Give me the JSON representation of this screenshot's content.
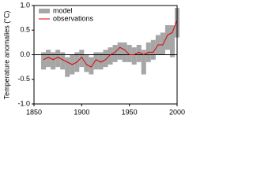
{
  "chart_data": {
    "type": "line",
    "ylabel": "Temperature anomalies (°C)",
    "x": [
      1860,
      1865,
      1870,
      1875,
      1880,
      1885,
      1890,
      1895,
      1900,
      1905,
      1910,
      1915,
      1920,
      1925,
      1930,
      1935,
      1940,
      1945,
      1950,
      1955,
      1960,
      1965,
      1970,
      1975,
      1980,
      1985,
      1990,
      1995,
      2000
    ],
    "series": [
      {
        "name": "model",
        "color": "#a6a6a6",
        "low": [
          -0.3,
          -0.25,
          -0.3,
          -0.25,
          -0.3,
          -0.45,
          -0.4,
          -0.35,
          -0.25,
          -0.35,
          -0.4,
          -0.3,
          -0.3,
          -0.25,
          -0.2,
          -0.15,
          -0.1,
          -0.15,
          -0.15,
          -0.2,
          -0.15,
          -0.4,
          -0.15,
          -0.1,
          0.0,
          0.0,
          0.1,
          -0.05,
          0.35
        ],
        "high": [
          0.05,
          0.1,
          0.05,
          0.1,
          0.05,
          -0.05,
          0.0,
          0.05,
          0.1,
          0.0,
          -0.05,
          0.05,
          0.05,
          0.1,
          0.15,
          0.2,
          0.25,
          0.25,
          0.2,
          0.15,
          0.2,
          0.1,
          0.25,
          0.3,
          0.4,
          0.45,
          0.6,
          0.6,
          0.95
        ]
      },
      {
        "name": "observations",
        "color": "#e00000",
        "values": [
          -0.1,
          -0.05,
          -0.1,
          -0.05,
          -0.1,
          -0.15,
          -0.2,
          -0.15,
          -0.05,
          -0.2,
          -0.25,
          -0.1,
          -0.15,
          -0.1,
          0.0,
          0.05,
          0.15,
          0.1,
          0.0,
          0.0,
          0.05,
          0.0,
          0.05,
          0.05,
          0.2,
          0.2,
          0.4,
          0.45,
          0.7
        ]
      }
    ],
    "xlim": [
      1850,
      2000
    ],
    "xticks": [
      1850,
      1900,
      1950,
      2000
    ],
    "ylim": [
      -1.0,
      1.0
    ],
    "yticks": [
      {
        "value": -1.0,
        "label": "-1.0"
      },
      {
        "value": -0.5,
        "label": "-0.5"
      },
      {
        "value": 0,
        "label": "0.0"
      },
      {
        "value": 0.5,
        "label": "0.5"
      },
      {
        "value": 1.0,
        "label": "1.0"
      }
    ],
    "zero_line": 0
  }
}
